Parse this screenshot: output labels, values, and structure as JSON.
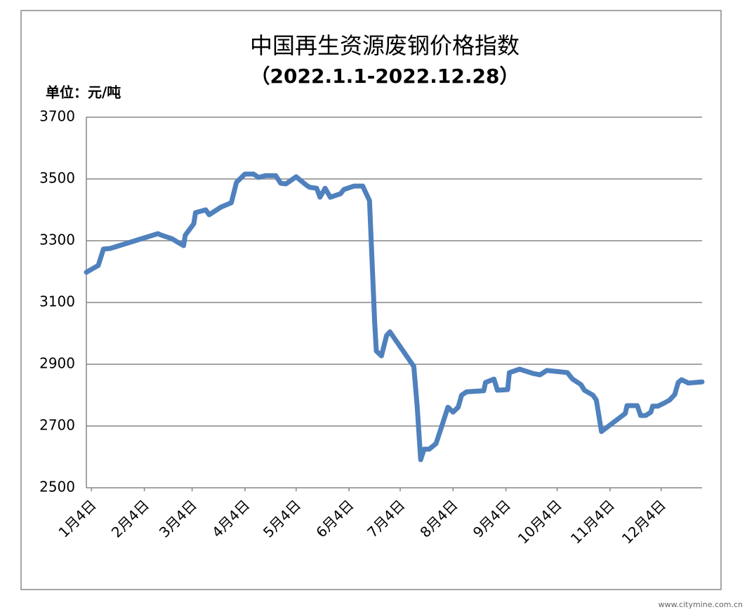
{
  "chart_data": {
    "type": "line",
    "title": "中国再生资源废钢价格指数",
    "subtitle": "（2022.1.1-2022.12.28）",
    "y_label": "单位：元/吨",
    "watermark": "www.citymine.com.cn",
    "x": [
      "2022-01-01",
      "2022-01-08",
      "2022-01-11",
      "2022-01-15",
      "2022-02-12",
      "2022-02-14",
      "2022-02-20",
      "2022-02-27",
      "2022-02-28",
      "2022-03-05",
      "2022-03-06",
      "2022-03-12",
      "2022-03-14",
      "2022-03-21",
      "2022-03-27",
      "2022-03-30",
      "2022-04-04",
      "2022-04-09",
      "2022-04-12",
      "2022-04-16",
      "2022-04-22",
      "2022-04-25",
      "2022-04-28",
      "2022-05-04",
      "2022-05-10",
      "2022-05-12",
      "2022-05-16",
      "2022-05-18",
      "2022-05-21",
      "2022-05-24",
      "2022-05-30",
      "2022-06-01",
      "2022-06-07",
      "2022-06-12",
      "2022-06-16",
      "2022-06-19",
      "2022-06-20",
      "2022-06-23",
      "2022-06-26",
      "2022-06-28",
      "2022-07-12",
      "2022-07-14",
      "2022-07-16",
      "2022-07-18",
      "2022-07-21",
      "2022-07-25",
      "2022-07-28",
      "2022-08-01",
      "2022-08-04",
      "2022-08-07",
      "2022-08-09",
      "2022-08-12",
      "2022-08-22",
      "2022-08-23",
      "2022-08-28",
      "2022-08-30",
      "2022-09-05",
      "2022-09-06",
      "2022-09-12",
      "2022-09-20",
      "2022-09-24",
      "2022-09-28",
      "2022-10-10",
      "2022-10-13",
      "2022-10-18",
      "2022-10-20",
      "2022-10-25",
      "2022-10-27",
      "2022-10-30",
      "2022-11-13",
      "2022-11-14",
      "2022-11-20",
      "2022-11-22",
      "2022-11-25",
      "2022-11-28",
      "2022-11-29",
      "2022-12-02",
      "2022-12-06",
      "2022-12-09",
      "2022-12-12",
      "2022-12-14",
      "2022-12-16",
      "2022-12-20",
      "2022-12-28"
    ],
    "series": [
      {
        "name": "废钢价格指数",
        "color": "#4f81bd",
        "values": [
          3198,
          3220,
          3273,
          3275,
          3323,
          3318,
          3307,
          3284,
          3318,
          3355,
          3391,
          3400,
          3384,
          3409,
          3423,
          3489,
          3516,
          3516,
          3505,
          3511,
          3511,
          3486,
          3484,
          3507,
          3480,
          3473,
          3470,
          3441,
          3470,
          3441,
          3452,
          3466,
          3477,
          3477,
          3430,
          3039,
          2943,
          2927,
          2993,
          3005,
          2893,
          2761,
          2591,
          2625,
          2625,
          2643,
          2693,
          2761,
          2745,
          2761,
          2800,
          2811,
          2814,
          2841,
          2852,
          2816,
          2818,
          2873,
          2884,
          2870,
          2866,
          2880,
          2873,
          2852,
          2834,
          2816,
          2800,
          2784,
          2682,
          2741,
          2766,
          2766,
          2734,
          2734,
          2745,
          2764,
          2764,
          2775,
          2784,
          2802,
          2841,
          2850,
          2839,
          2843
        ]
      }
    ],
    "xlim": [
      "2022-01-01",
      "2022-12-28"
    ],
    "xticks": [
      {
        "value": "2022-01-04",
        "label": "1月4日"
      },
      {
        "value": "2022-02-04",
        "label": "2月4日"
      },
      {
        "value": "2022-03-04",
        "label": "3月4日"
      },
      {
        "value": "2022-04-04",
        "label": "4月4日"
      },
      {
        "value": "2022-05-04",
        "label": "5月4日"
      },
      {
        "value": "2022-06-04",
        "label": "6月4日"
      },
      {
        "value": "2022-07-04",
        "label": "7月4日"
      },
      {
        "value": "2022-08-04",
        "label": "8月4日"
      },
      {
        "value": "2022-09-04",
        "label": "9月4日"
      },
      {
        "value": "2022-10-04",
        "label": "10月4日"
      },
      {
        "value": "2022-11-04",
        "label": "11月4日"
      },
      {
        "value": "2022-12-04",
        "label": "12月4日"
      }
    ],
    "ylim": [
      2500,
      3700
    ],
    "yticks": [
      2500,
      2700,
      2900,
      3100,
      3300,
      3500,
      3700
    ],
    "grid": true
  }
}
